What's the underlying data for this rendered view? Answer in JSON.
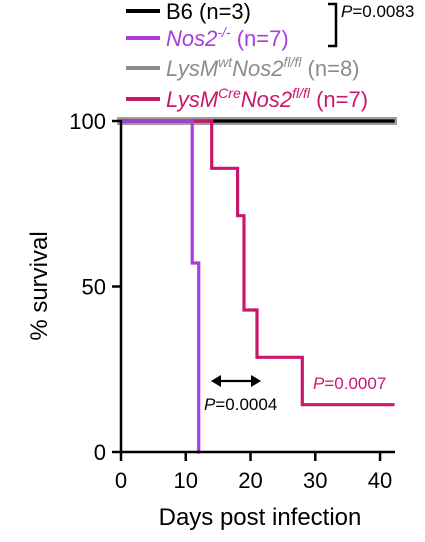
{
  "chart_data": {
    "type": "line",
    "subtype": "kaplan-meier survival",
    "xlabel": "Days post infection",
    "ylabel": "% survival",
    "xlim": [
      0,
      42
    ],
    "ylim": [
      0,
      100
    ],
    "xticks": [
      0,
      10,
      20,
      30,
      40
    ],
    "yticks": [
      0,
      50,
      100
    ],
    "grid": false,
    "legend_placement": "top",
    "series": [
      {
        "key": "b6",
        "name": "B6 (n=3)",
        "color": "#000000",
        "steps": [
          [
            0,
            100
          ],
          [
            42,
            100
          ]
        ]
      },
      {
        "key": "nos2ko",
        "name": "Nos2-/- (n=7)",
        "name_parts": {
          "base": "Nos2",
          "sup": "-/-",
          "rest": " (n=7)"
        },
        "color": "#a83ddb",
        "steps": [
          [
            0,
            100
          ],
          [
            11,
            100
          ],
          [
            11,
            57.1
          ],
          [
            12,
            57.1
          ],
          [
            12,
            0
          ]
        ]
      },
      {
        "key": "lysmwt",
        "name": "LysMwtNos2fl/fl (n=8)",
        "name_parts": {
          "a": "LysM",
          "sup1": "wt",
          "b": "Nos2",
          "sup2": "fl/fl",
          "rest": " (n=8)"
        },
        "color": "#8c8c8c",
        "steps": [
          [
            0,
            100
          ],
          [
            42,
            100
          ]
        ]
      },
      {
        "key": "lysmcre",
        "name": "LysMCreNos2fl/fl (n=7)",
        "name_parts": {
          "a": "LysM",
          "sup1": "Cre",
          "b": "Nos2",
          "sup2": "fl/fl",
          "rest": " (n=7)"
        },
        "color": "#c9186c",
        "steps": [
          [
            0,
            100
          ],
          [
            14,
            100
          ],
          [
            14,
            85.7
          ],
          [
            18,
            85.7
          ],
          [
            18,
            71.4
          ],
          [
            19,
            71.4
          ],
          [
            19,
            42.9
          ],
          [
            21,
            42.9
          ],
          [
            21,
            28.6
          ],
          [
            28,
            28.6
          ],
          [
            28,
            14.3
          ],
          [
            42,
            14.3
          ]
        ]
      }
    ],
    "annotations": [
      {
        "key": "p_b6",
        "prefix": "P",
        "text": "=0.0083",
        "color": "#000000"
      },
      {
        "key": "p_cre",
        "prefix": "P",
        "text": "=0.0007",
        "color": "#c9186c"
      },
      {
        "key": "p_shift",
        "prefix": "P",
        "text": "=0.0004",
        "color": "#000000"
      }
    ]
  }
}
